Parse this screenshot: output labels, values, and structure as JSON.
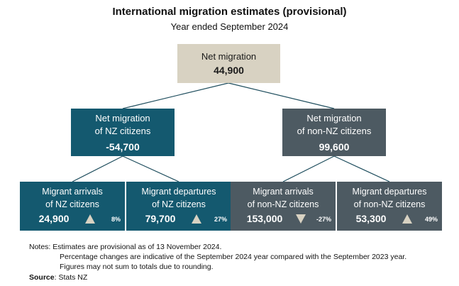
{
  "header": {
    "title": "International migration estimates (provisional)",
    "subtitle": "Year ended September 2024"
  },
  "root": {
    "label": "Net migration",
    "value": "44,900"
  },
  "mid": [
    {
      "label1": "Net migration",
      "label2": "of NZ citizens",
      "value": "-54,700"
    },
    {
      "label1": "Net migration",
      "label2": "of non-NZ citizens",
      "value": "99,600"
    }
  ],
  "leaves": [
    {
      "label1": "Migrant arrivals",
      "label2": "of NZ citizens",
      "value": "24,900",
      "change": "8%",
      "direction": "up"
    },
    {
      "label1": "Migrant departures",
      "label2": "of NZ citizens",
      "value": "79,700",
      "change": "27%",
      "direction": "up"
    },
    {
      "label1": "Migrant arrivals",
      "label2": "of non-NZ citizens",
      "value": "153,000",
      "change": "-27%",
      "direction": "down"
    },
    {
      "label1": "Migrant departures",
      "label2": "of non-NZ citizens",
      "value": "53,300",
      "change": "49%",
      "direction": "up"
    }
  ],
  "colors": {
    "nz": "#14596f",
    "non_nz": "#4d5a62",
    "root": "#d8d2c2",
    "connector": "#1f4e5e"
  },
  "notes": {
    "line1": "Notes: Estimates are provisional as of 13 November 2024.",
    "line2": "Percentage changes are indicative of the September 2024 year compared with the September 2023 year.",
    "line3": "Figures may not sum to totals due to rounding."
  },
  "source": {
    "label": "Source",
    "text": ": Stats NZ"
  }
}
